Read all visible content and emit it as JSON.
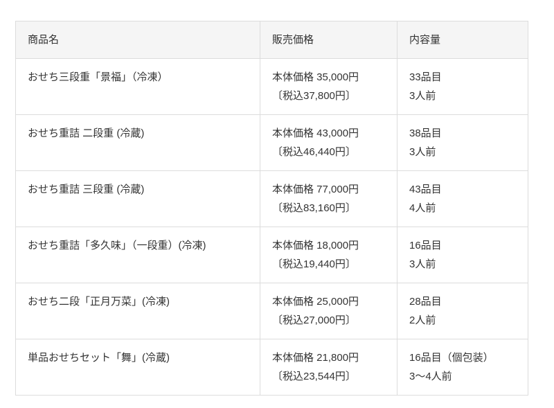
{
  "table": {
    "columns": [
      {
        "label": "商品名"
      },
      {
        "label": "販売価格"
      },
      {
        "label": "内容量"
      }
    ],
    "rows": [
      {
        "name": "おせち三段重「景福」（冷凍）",
        "price_base": "本体価格 35,000円",
        "price_tax": "〔税込37,800円〕",
        "contents_items": "33品目",
        "contents_servings": "3人前"
      },
      {
        "name": "おせち重詰 二段重 (冷蔵)",
        "price_base": "本体価格 43,000円",
        "price_tax": "〔税込46,440円〕",
        "contents_items": "38品目",
        "contents_servings": "3人前"
      },
      {
        "name": "おせち重詰 三段重 (冷蔵)",
        "price_base": "本体価格 77,000円",
        "price_tax": "〔税込83,160円〕",
        "contents_items": "43品目",
        "contents_servings": "4人前"
      },
      {
        "name": "おせち重詰「多久味」（一段重）(冷凍)",
        "price_base": "本体価格 18,000円",
        "price_tax": "〔税込19,440円〕",
        "contents_items": "16品目",
        "contents_servings": "3人前"
      },
      {
        "name": "おせち二段「正月万菜」(冷凍)",
        "price_base": "本体価格 25,000円",
        "price_tax": "〔税込27,000円〕",
        "contents_items": "28品目",
        "contents_servings": "2人前"
      },
      {
        "name": "単品おせちセット「舞」(冷蔵)",
        "price_base": "本体価格 21,800円",
        "price_tax": "〔税込23,544円〕",
        "contents_items": "16品目（個包装）",
        "contents_servings": "3～4人前"
      }
    ]
  },
  "colors": {
    "page_bg": "#ffffff",
    "header_bg": "#f5f5f5",
    "border": "#dcdcdc",
    "text": "#333333"
  }
}
